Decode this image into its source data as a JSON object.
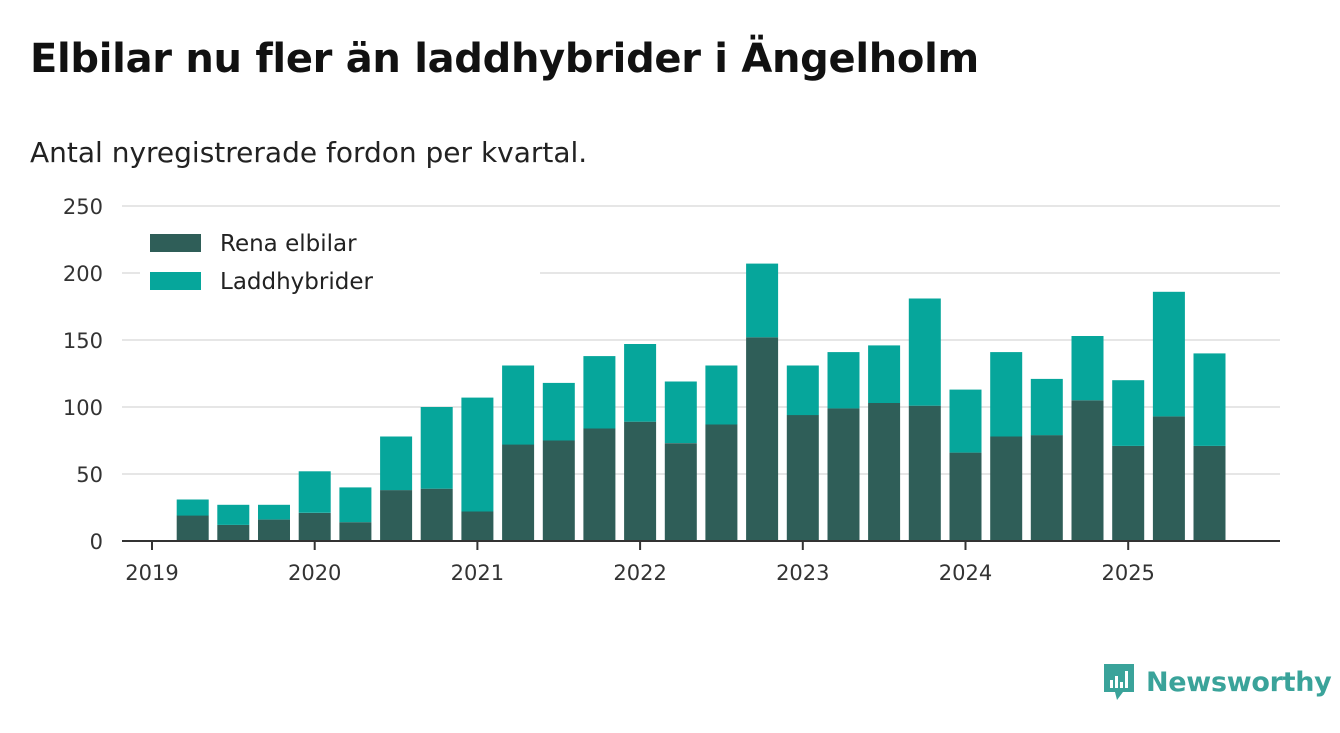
{
  "title": "Elbilar nu fler än laddhybrider i Ängelholm",
  "subtitle": "Antal nyregistrerade fordon per kvartal.",
  "brand": {
    "name": "Newsworthy",
    "color": "#3aa39a"
  },
  "chart_data": {
    "type": "bar",
    "stacked": true,
    "title": "Elbilar nu fler än laddhybrider i Ängelholm",
    "subtitle": "Antal nyregistrerade fordon per kvartal.",
    "xlabel": "",
    "ylabel": "",
    "ylim": [
      0,
      250
    ],
    "y_ticks": [
      0,
      50,
      100,
      150,
      200,
      250
    ],
    "x_ticks": [
      "2019",
      "2020",
      "2021",
      "2022",
      "2023",
      "2024",
      "2025"
    ],
    "grid": true,
    "legend_position": "top-left",
    "categories": [
      "2019 Q2",
      "2019 Q3",
      "2019 Q4",
      "2020 Q1",
      "2020 Q2",
      "2020 Q3",
      "2020 Q4",
      "2021 Q1",
      "2021 Q2",
      "2021 Q3",
      "2021 Q4",
      "2022 Q1",
      "2022 Q2",
      "2022 Q3",
      "2022 Q4",
      "2023 Q1",
      "2023 Q2",
      "2023 Q3",
      "2023 Q4",
      "2024 Q1",
      "2024 Q2",
      "2024 Q3",
      "2024 Q4",
      "2025 Q1",
      "2025 Q2",
      "2025 Q3"
    ],
    "series": [
      {
        "name": "Rena elbilar",
        "color": "#2f5e58",
        "values": [
          19,
          12,
          16,
          21,
          14,
          38,
          39,
          22,
          72,
          75,
          84,
          89,
          73,
          87,
          152,
          94,
          99,
          103,
          101,
          66,
          78,
          79,
          105,
          71,
          93,
          71
        ]
      },
      {
        "name": "Laddhybrider",
        "color": "#06a69b",
        "values": [
          12,
          15,
          11,
          31,
          26,
          40,
          61,
          85,
          59,
          43,
          54,
          58,
          46,
          44,
          55,
          37,
          42,
          43,
          80,
          47,
          63,
          42,
          48,
          49,
          93,
          69
        ]
      }
    ]
  }
}
